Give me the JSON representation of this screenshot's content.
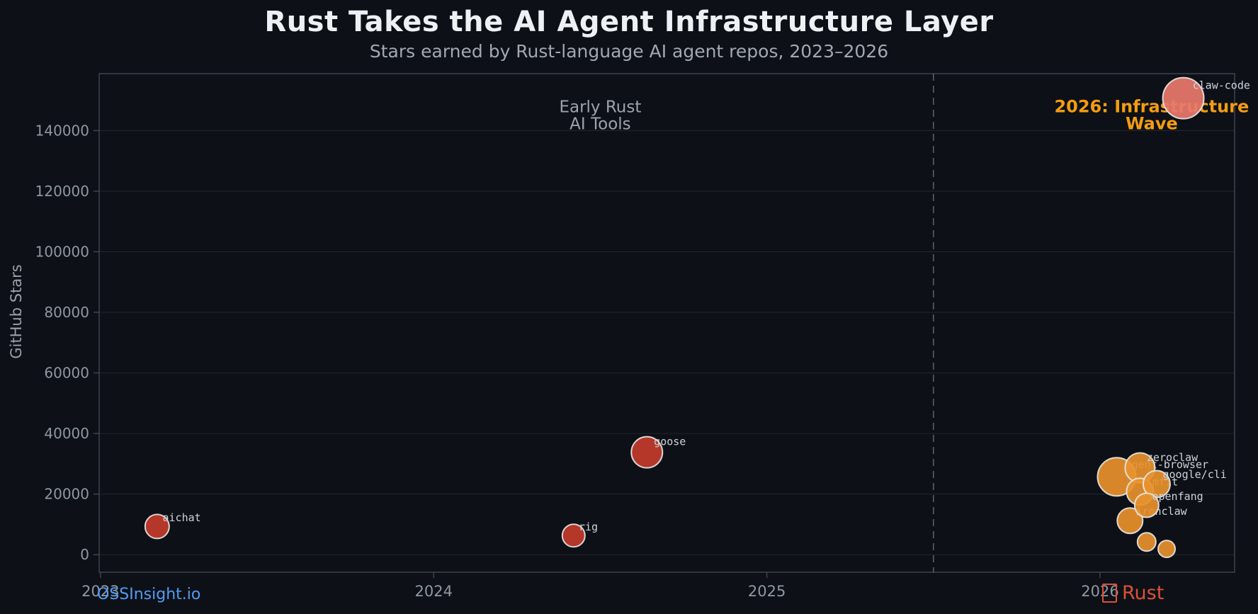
{
  "header": {
    "title": "Rust Takes the AI Agent Infrastructure Layer",
    "subtitle": "Stars earned by Rust-language AI agent repos, 2023–2026"
  },
  "footer": {
    "source_link": "OSSInsight.io",
    "brand_label": "Rust",
    "brand_icon": "crab-emoji-missing-glyph-box",
    "brand_color": "#dc5136",
    "source_color": "#539bf5"
  },
  "chart_data": {
    "type": "scatter",
    "title": "Rust Takes the AI Agent Infrastructure Layer",
    "subtitle": "Stars earned by Rust-language AI agent repos, 2023–2026",
    "xlabel": "",
    "ylabel": "GitHub Stars",
    "xlim": [
      2022.996,
      2026.404
    ],
    "ylim": [
      -5800,
      158800
    ],
    "x_ticks": [
      2023,
      2024,
      2025,
      2026
    ],
    "y_ticks": [
      0,
      20000,
      40000,
      60000,
      80000,
      100000,
      120000,
      140000
    ],
    "grid": "horizontal-only",
    "legend": "none",
    "divider": {
      "x": 2025.5,
      "style": "dashed-vertical"
    },
    "colors": {
      "red": "#c23b2b",
      "orange": "#e8912d",
      "salmon": "#e9786c",
      "bubble_stroke": "#e8e8e8",
      "grid": "rgba(160,170,185,0.14)",
      "border": "#3d444d",
      "tick_text": "#8f98a2",
      "axis_label": "#9aa1ab",
      "bubble_label": "#ccd3da",
      "divider": "#575e67"
    },
    "annotations": [
      {
        "id": "early-rust-ai-tools",
        "lines": [
          "Early Rust",
          "AI Tools"
        ],
        "x": 2024.5,
        "y": 146000,
        "color": "#9aa4ae",
        "bold": false
      },
      {
        "id": "infrastructure-wave-2026",
        "lines": [
          "2026: Infrastructure",
          "Wave"
        ],
        "x": 2026.155,
        "y": 146000,
        "color": "#f39c12",
        "bold": true
      }
    ],
    "points": [
      {
        "label": "aichat",
        "x": 2023.17,
        "stars": 9300,
        "r": 17,
        "color": "red"
      },
      {
        "label": "rig",
        "x": 2024.42,
        "stars": 6300,
        "r": 16,
        "color": "red"
      },
      {
        "label": "goose",
        "x": 2024.64,
        "stars": 33800,
        "r": 22,
        "color": "red"
      },
      {
        "label": "agent-browser",
        "x": 2026.05,
        "stars": 25700,
        "r": 27,
        "color": "orange"
      },
      {
        "label": "zeroclaw",
        "x": 2026.12,
        "stars": 28700,
        "r": 21,
        "color": "orange"
      },
      {
        "label": "lmfit",
        "x": 2026.12,
        "stars": 20800,
        "r": 19,
        "color": "orange"
      },
      {
        "label": "google/cli",
        "x": 2026.17,
        "stars": 23300,
        "r": 19,
        "color": "orange"
      },
      {
        "label": "ironclaw",
        "x": 2026.09,
        "stars": 11200,
        "r": 18,
        "color": "orange"
      },
      {
        "label": "openfang",
        "x": 2026.14,
        "stars": 16300,
        "r": 17,
        "color": "orange"
      },
      {
        "label": "",
        "x": 2026.14,
        "stars": 4200,
        "r": 13,
        "color": "orange"
      },
      {
        "label": "",
        "x": 2026.2,
        "stars": 1900,
        "r": 12,
        "color": "orange"
      },
      {
        "label": "claw-code",
        "x": 2026.25,
        "stars": 150700,
        "r": 29,
        "color": "salmon"
      }
    ]
  }
}
